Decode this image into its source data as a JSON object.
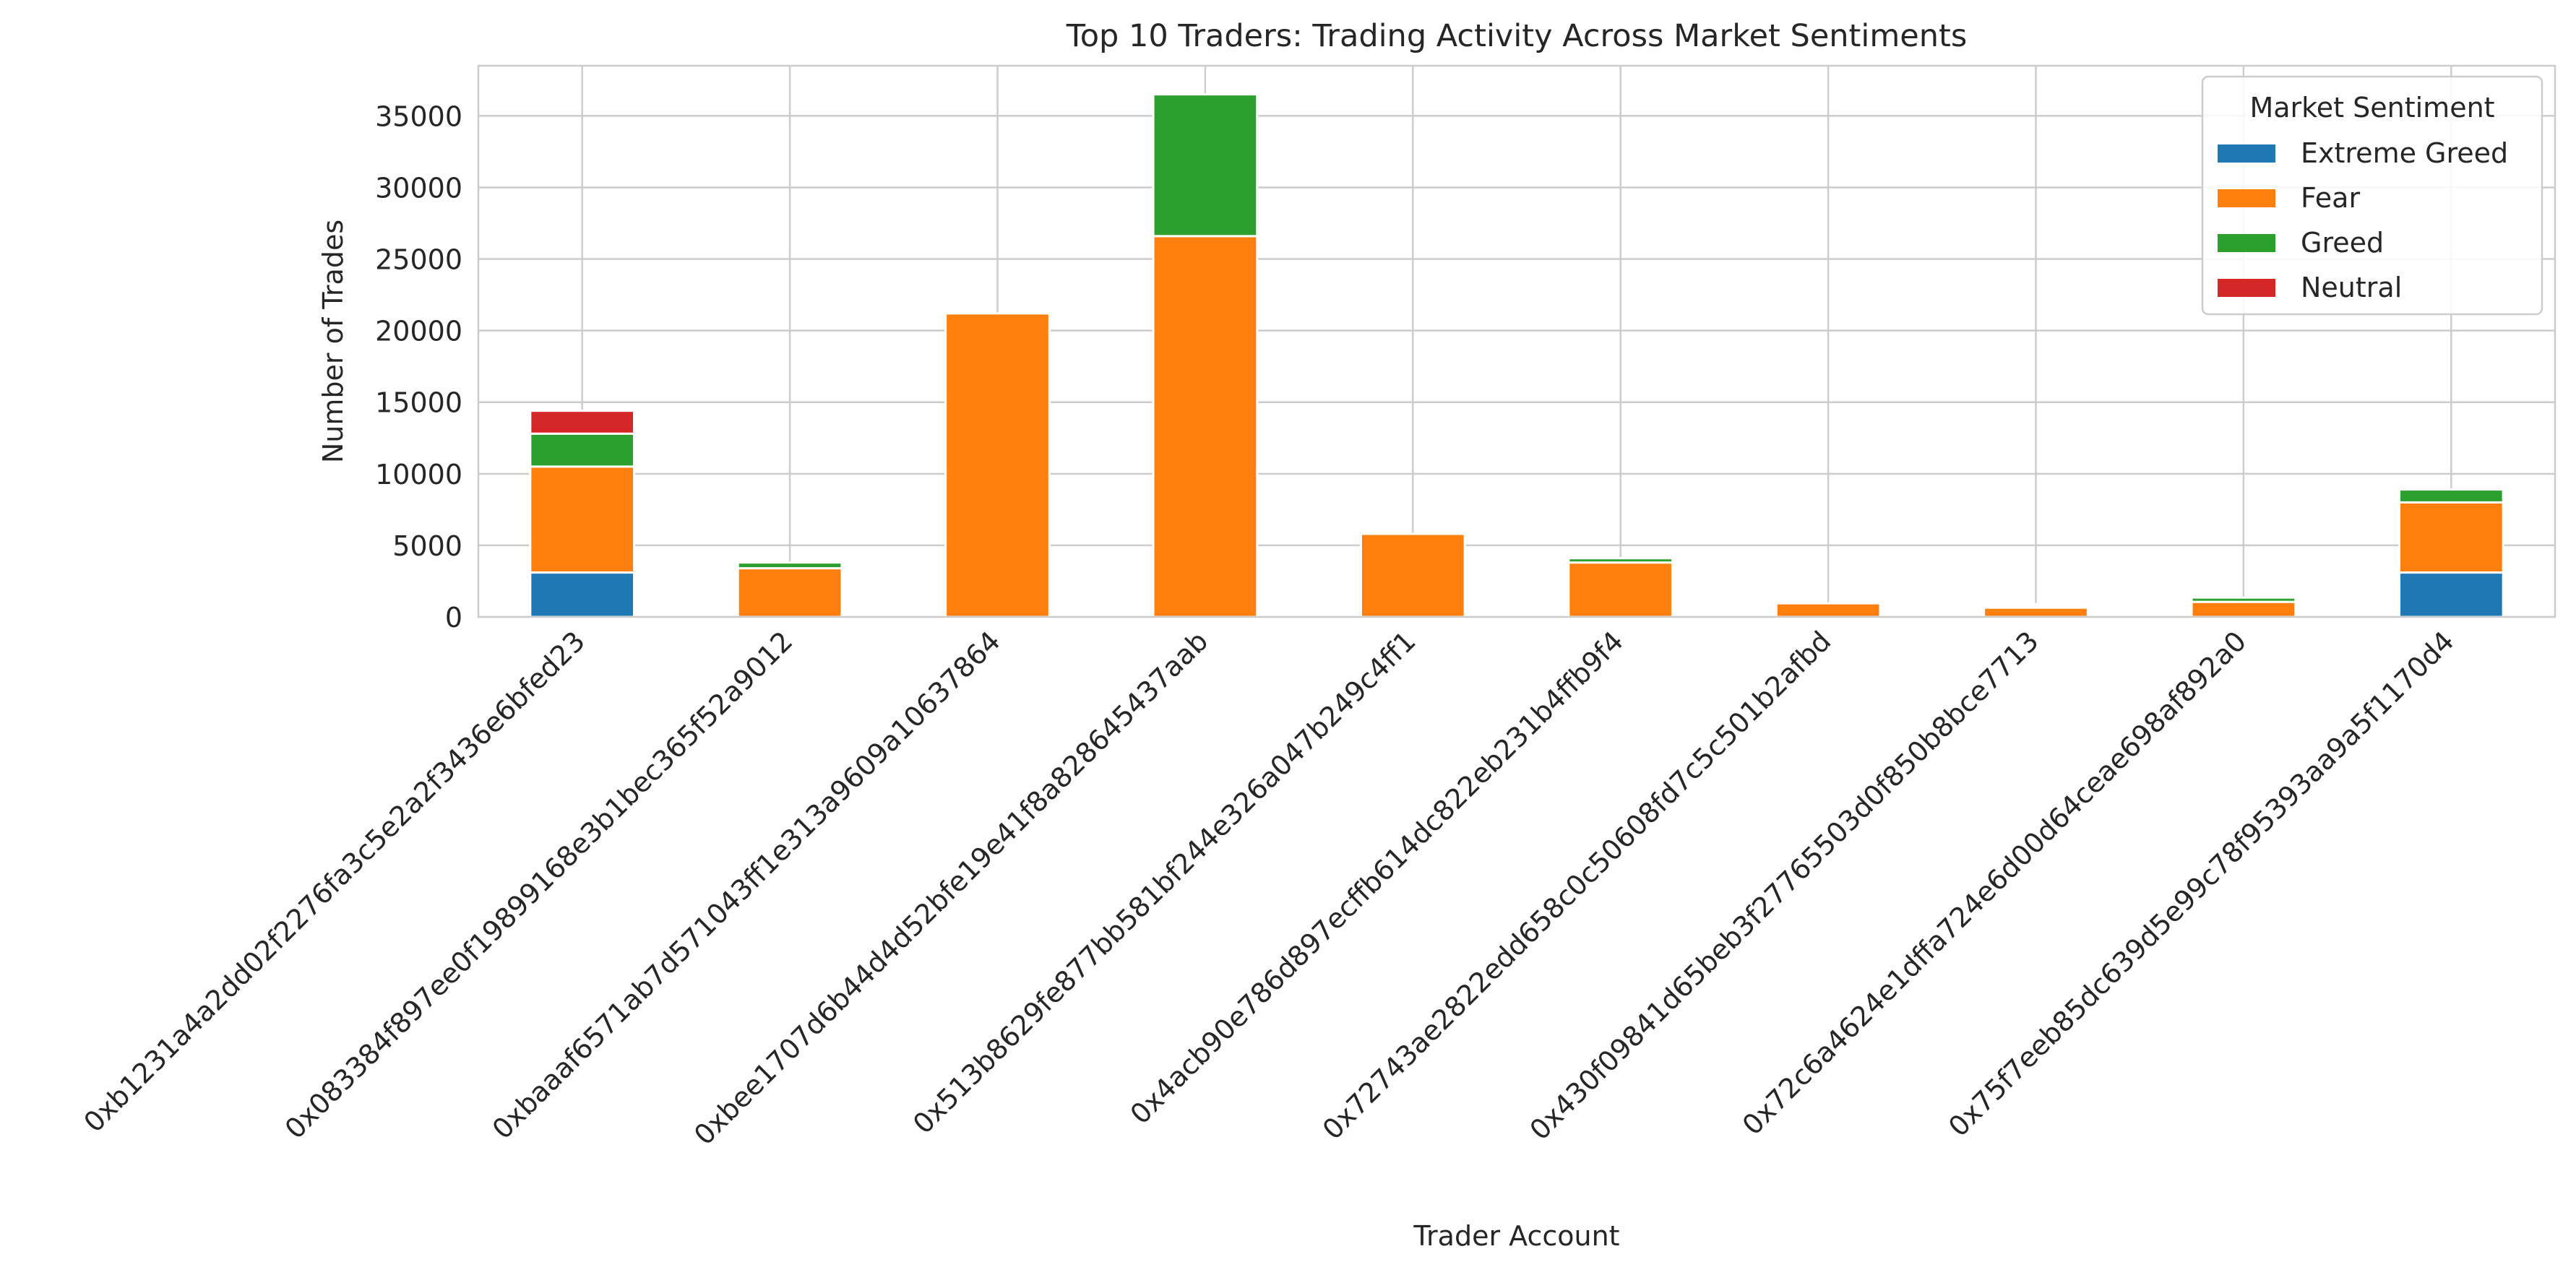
{
  "chart_data": {
    "type": "bar",
    "stacked": true,
    "title": "Top 10 Traders: Trading Activity Across Market Sentiments",
    "xlabel": "Trader Account",
    "ylabel": "Number of Trades",
    "ylim": [
      0,
      38500
    ],
    "yticks": [
      0,
      5000,
      10000,
      15000,
      20000,
      25000,
      30000,
      35000
    ],
    "grid": true,
    "legend": {
      "title": "Market Sentiment",
      "placement": "upper-right"
    },
    "categories": [
      "0xb1231a4a2dd02f2276fa3c5e2a2f3436e6bfed23",
      "0x083384f897ee0f19899168e3b1bec365f52a9012",
      "0xbaaaf6571ab7d571043ff1e313a9609a10637864",
      "0xbee1707d6b44d4d52bfe19e41f8a828645437aab",
      "0x513b8629fe877bb581bf244e326a047b249c4ff1",
      "0x4acb90e786d897ecffb614dc822eb231b4ffb9f4",
      "0x72743ae2822edd658c0c50608fd7c5c501b2afbd",
      "0x430f09841d65beb3f27765503d0f850b8bce7713",
      "0x72c6a4624e1dffa724e6d00d64ceae698af892a0",
      "0x75f7eeb85dc639d5e99c78f95393aa9a5f1170d4"
    ],
    "series": [
      {
        "name": "Extreme Greed",
        "color": "#1f77b4",
        "values": [
          3100,
          0,
          0,
          0,
          0,
          0,
          0,
          0,
          0,
          3100
        ]
      },
      {
        "name": "Fear",
        "color": "#ff7f0e",
        "values": [
          7400,
          3400,
          21200,
          26600,
          5800,
          3800,
          950,
          650,
          1050,
          4900
        ]
      },
      {
        "name": "Greed",
        "color": "#2ca02c",
        "values": [
          2300,
          400,
          0,
          9900,
          0,
          300,
          0,
          150,
          300,
          900
        ]
      },
      {
        "name": "Neutral",
        "color": "#d62728",
        "values": [
          1600,
          0,
          0,
          0,
          0,
          0,
          0,
          100,
          0,
          0
        ]
      }
    ]
  }
}
